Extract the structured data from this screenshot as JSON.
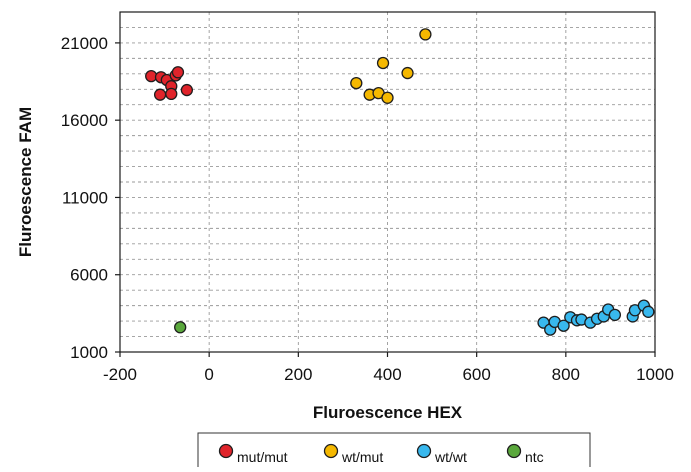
{
  "chart_data": {
    "type": "scatter",
    "title": "",
    "xlabel": "Fluroescence HEX",
    "ylabel": "Fluroescence FAM",
    "xlim": [
      -200,
      1000
    ],
    "ylim": [
      1000,
      23000
    ],
    "x_ticks": [
      -200,
      0,
      200,
      400,
      600,
      800,
      1000
    ],
    "y_ticks": [
      1000,
      6000,
      11000,
      16000,
      21000
    ],
    "grid": {
      "vertical_dashed_at": [
        0,
        200,
        400,
        600,
        800
      ],
      "horizontal_dashed_every": 1000
    },
    "legend_position": "bottom",
    "series": [
      {
        "name": "mut/mut",
        "color": "#e0242b",
        "points": [
          {
            "x": -130,
            "y": 18850
          },
          {
            "x": -108,
            "y": 18780
          },
          {
            "x": -95,
            "y": 18600
          },
          {
            "x": -85,
            "y": 18200
          },
          {
            "x": -75,
            "y": 18900
          },
          {
            "x": -70,
            "y": 19100
          },
          {
            "x": -110,
            "y": 17650
          },
          {
            "x": -85,
            "y": 17700
          },
          {
            "x": -50,
            "y": 17950
          }
        ]
      },
      {
        "name": "wt/mut",
        "color": "#f5b800",
        "points": [
          {
            "x": 330,
            "y": 18400
          },
          {
            "x": 360,
            "y": 17650
          },
          {
            "x": 380,
            "y": 17750
          },
          {
            "x": 390,
            "y": 19700
          },
          {
            "x": 400,
            "y": 17450
          },
          {
            "x": 445,
            "y": 19050
          },
          {
            "x": 485,
            "y": 21550
          }
        ]
      },
      {
        "name": "wt/wt",
        "color": "#38b8ee",
        "points": [
          {
            "x": 750,
            "y": 2900
          },
          {
            "x": 765,
            "y": 2450
          },
          {
            "x": 775,
            "y": 2950
          },
          {
            "x": 795,
            "y": 2700
          },
          {
            "x": 810,
            "y": 3250
          },
          {
            "x": 825,
            "y": 3050
          },
          {
            "x": 835,
            "y": 3100
          },
          {
            "x": 855,
            "y": 2900
          },
          {
            "x": 870,
            "y": 3150
          },
          {
            "x": 885,
            "y": 3300
          },
          {
            "x": 895,
            "y": 3750
          },
          {
            "x": 910,
            "y": 3400
          },
          {
            "x": 950,
            "y": 3300
          },
          {
            "x": 955,
            "y": 3700
          },
          {
            "x": 975,
            "y": 4000
          },
          {
            "x": 985,
            "y": 3600
          }
        ]
      },
      {
        "name": "ntc",
        "color": "#5aa83c",
        "points": [
          {
            "x": -65,
            "y": 2600
          }
        ]
      }
    ]
  }
}
